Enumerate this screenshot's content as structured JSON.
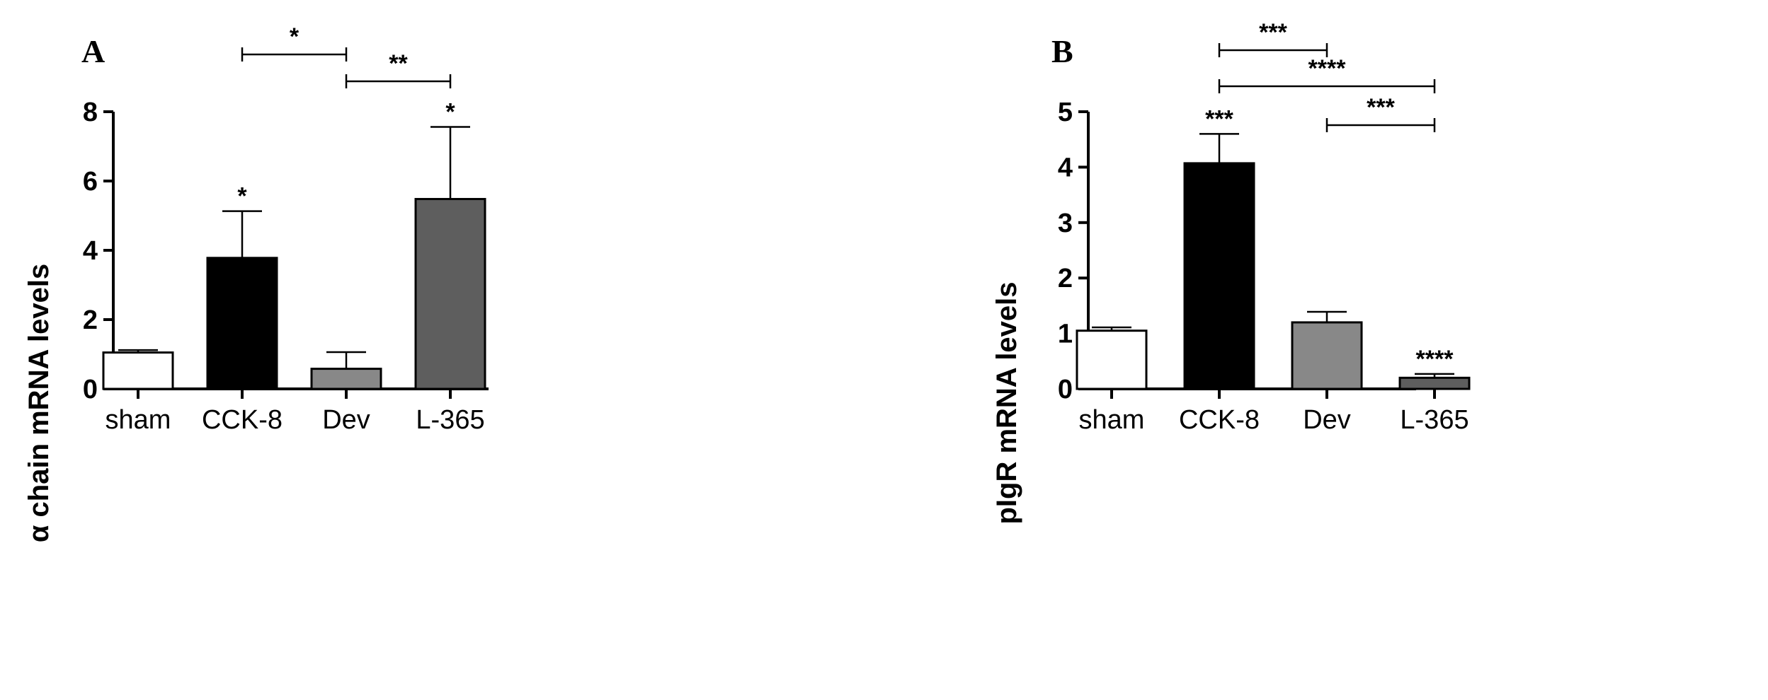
{
  "chart_data": [
    {
      "panel": "A",
      "type": "bar",
      "title": "",
      "xlabel": "",
      "ylabel": "α chain mRNA levels",
      "categories": [
        "sham",
        "CCK-8",
        "Dev",
        "L-365"
      ],
      "values": [
        1.05,
        3.78,
        0.58,
        5.48
      ],
      "errors": [
        0.07,
        1.35,
        0.48,
        2.08
      ],
      "bar_colors": [
        "#ffffff",
        "#000000",
        "#888888",
        "#5e5e5e"
      ],
      "ylim": [
        0,
        8
      ],
      "yticks": [
        "0",
        "2",
        "4",
        "6",
        "8"
      ],
      "bar_annotations": [
        "",
        "*",
        "",
        "*"
      ],
      "comparisons": [
        {
          "from": 1,
          "to": 2,
          "label": "*"
        },
        {
          "from": 2,
          "to": 3,
          "label": "**"
        }
      ],
      "grid": false,
      "legend": "none"
    },
    {
      "panel": "B",
      "type": "bar",
      "title": "",
      "xlabel": "",
      "ylabel": "pIgR mRNA levels",
      "categories": [
        "sham",
        "CCK-8",
        "Dev",
        "L-365"
      ],
      "values": [
        1.05,
        4.07,
        1.2,
        0.2
      ],
      "errors": [
        0.06,
        0.53,
        0.19,
        0.07
      ],
      "bar_colors": [
        "#ffffff",
        "#000000",
        "#888888",
        "#5e5e5e"
      ],
      "ylim": [
        0,
        5
      ],
      "yticks": [
        "0",
        "1",
        "2",
        "3",
        "4",
        "5"
      ],
      "bar_annotations": [
        "",
        "***",
        "",
        "****"
      ],
      "comparisons": [
        {
          "from": 1,
          "to": 2,
          "label": "***"
        },
        {
          "from": 1,
          "to": 3,
          "label": "****"
        },
        {
          "from": 2,
          "to": 3,
          "label": "***"
        }
      ],
      "grid": false,
      "legend": "none"
    }
  ]
}
